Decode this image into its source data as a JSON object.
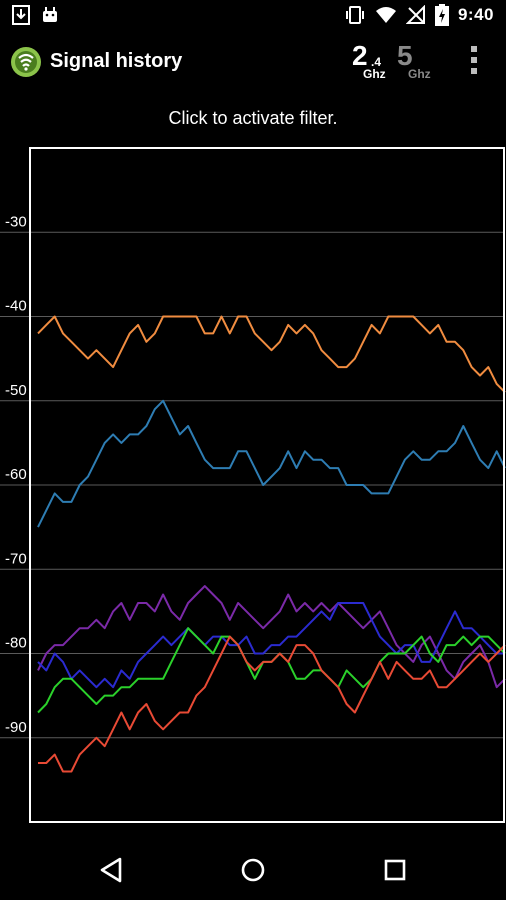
{
  "status_bar": {
    "time": "9:40",
    "icons_left": [
      "download-icon",
      "android-icon"
    ],
    "icons_right": [
      "vibrate-icon",
      "wifi-icon",
      "no-signal-icon",
      "battery-charging-icon"
    ]
  },
  "app_bar": {
    "title": "Signal history",
    "band_24": {
      "main": "2",
      "sub_top": ".4",
      "sub_bottom": "Ghz"
    },
    "band_5": {
      "main": "5",
      "sub_bottom": "Ghz"
    },
    "overflow_icon": "more-vert-icon"
  },
  "filter_hint": "Click to activate filter.",
  "chart_data": {
    "type": "line",
    "ylim": [
      -100,
      -20
    ],
    "yticks": [
      -30,
      -40,
      -50,
      -60,
      -70,
      -80,
      -90
    ],
    "ytick_labels": [
      "-30",
      "-40",
      "-50",
      "-60",
      "-70",
      "-80",
      "-90"
    ],
    "grid": true,
    "x": [
      0,
      1,
      2,
      3,
      4,
      5,
      6,
      7,
      8,
      9,
      10,
      11,
      12,
      13,
      14,
      15,
      16,
      17,
      18,
      19,
      20,
      21,
      22,
      23,
      24,
      25,
      26,
      27,
      28,
      29,
      30,
      31,
      32,
      33,
      34,
      35,
      36,
      37,
      38,
      39,
      40,
      41,
      42,
      43,
      44,
      45,
      46,
      47,
      48,
      49,
      50,
      51,
      52,
      53,
      54,
      55,
      56
    ],
    "series": [
      {
        "color": "#f08c40",
        "values": [
          -42,
          -41,
          -40,
          -42,
          -43,
          -44,
          -45,
          -44,
          -45,
          -46,
          -44,
          -42,
          -41,
          -43,
          -42,
          -40,
          -40,
          -40,
          -40,
          -40,
          -42,
          -42,
          -40,
          -42,
          -40,
          -40,
          -42,
          -43,
          -44,
          -43,
          -41,
          -42,
          -41,
          -42,
          -44,
          -45,
          -46,
          -46,
          -45,
          -43,
          -41,
          -42,
          -40,
          -40,
          -40,
          -40,
          -41,
          -42,
          -41,
          -43,
          -43,
          -44,
          -46,
          -47,
          -46,
          -48,
          -49
        ]
      },
      {
        "color": "#2e7db3",
        "values": [
          -65,
          -63,
          -61,
          -62,
          -62,
          -60,
          -59,
          -57,
          -55,
          -54,
          -55,
          -54,
          -54,
          -53,
          -51,
          -50,
          -52,
          -54,
          -53,
          -55,
          -57,
          -58,
          -58,
          -58,
          -56,
          -56,
          -58,
          -60,
          -59,
          -58,
          -56,
          -58,
          -56,
          -57,
          -57,
          -58,
          -58,
          -60,
          -60,
          -60,
          -61,
          -61,
          -61,
          -59,
          -57,
          -56,
          -57,
          -57,
          -56,
          -56,
          -55,
          -53,
          -55,
          -57,
          -58,
          -56,
          -58
        ]
      },
      {
        "color": "#7b2aa8",
        "values": [
          -82,
          -80,
          -79,
          -79,
          -78,
          -77,
          -77,
          -76,
          -77,
          -75,
          -74,
          -76,
          -74,
          -74,
          -75,
          -73,
          -75,
          -76,
          -74,
          -73,
          -72,
          -73,
          -74,
          -76,
          -74,
          -75,
          -76,
          -77,
          -76,
          -75,
          -73,
          -75,
          -74,
          -75,
          -74,
          -75,
          -74,
          -75,
          -76,
          -77,
          -76,
          -75,
          -77,
          -79,
          -80,
          -81,
          -79,
          -78,
          -80,
          -82,
          -83,
          -81,
          -80,
          -79,
          -81,
          -84,
          -83
        ]
      },
      {
        "color": "#2b2bd0",
        "values": [
          -81,
          -82,
          -80,
          -81,
          -83,
          -82,
          -83,
          -84,
          -83,
          -84,
          -82,
          -83,
          -81,
          -80,
          -79,
          -78,
          -79,
          -78,
          -77,
          -78,
          -79,
          -78,
          -78,
          -79,
          -79,
          -78,
          -80,
          -80,
          -79,
          -79,
          -78,
          -78,
          -77,
          -76,
          -75,
          -76,
          -74,
          -74,
          -74,
          -74,
          -76,
          -78,
          -79,
          -80,
          -79,
          -79,
          -81,
          -81,
          -79,
          -77,
          -75,
          -77,
          -77,
          -78,
          -79,
          -80,
          -80
        ]
      },
      {
        "color": "#2bd12b",
        "values": [
          -87,
          -86,
          -84,
          -83,
          -83,
          -84,
          -85,
          -86,
          -85,
          -85,
          -84,
          -84,
          -83,
          -83,
          -83,
          -83,
          -81,
          -79,
          -77,
          -78,
          -79,
          -80,
          -78,
          -78,
          -79,
          -81,
          -83,
          -81,
          -81,
          -80,
          -81,
          -83,
          -83,
          -82,
          -82,
          -83,
          -84,
          -82,
          -83,
          -84,
          -83,
          -81,
          -80,
          -80,
          -80,
          -79,
          -78,
          -80,
          -81,
          -79,
          -79,
          -78,
          -79,
          -78,
          -78,
          -79,
          -80
        ]
      },
      {
        "color": "#e84a35",
        "values": [
          -93,
          -93,
          -92,
          -94,
          -94,
          -92,
          -91,
          -90,
          -91,
          -89,
          -87,
          -89,
          -87,
          -86,
          -88,
          -89,
          -88,
          -87,
          -87,
          -85,
          -84,
          -82,
          -80,
          -78,
          -79,
          -81,
          -82,
          -81,
          -81,
          -80,
          -81,
          -79,
          -79,
          -80,
          -82,
          -83,
          -84,
          -86,
          -87,
          -85,
          -83,
          -81,
          -83,
          -81,
          -82,
          -83,
          -83,
          -82,
          -84,
          -84,
          -83,
          -82,
          -81,
          -80,
          -81,
          -80,
          -79
        ]
      }
    ]
  },
  "nav_bar": {
    "back_icon": "back-triangle-icon",
    "home_icon": "home-circle-icon",
    "recents_icon": "recents-square-icon"
  }
}
